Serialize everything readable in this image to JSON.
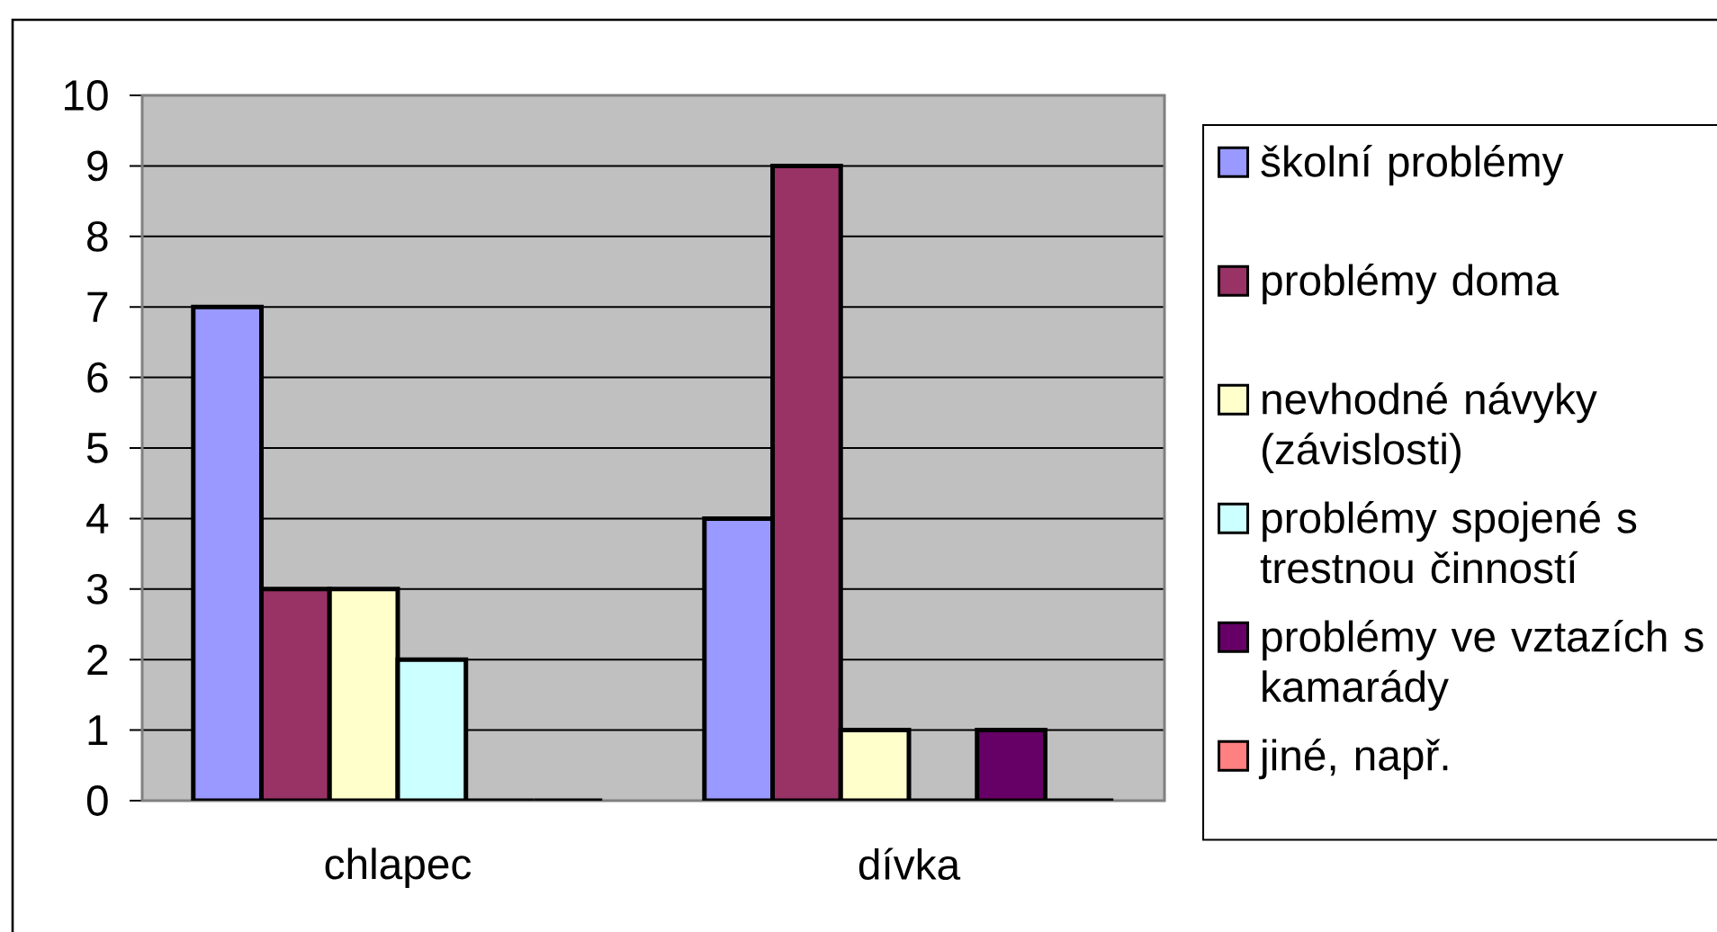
{
  "chart_data": {
    "type": "bar",
    "categories": [
      "chlapec",
      "dívka"
    ],
    "series": [
      {
        "name": "školní problémy",
        "color": "#9999ff",
        "values": [
          7,
          4
        ]
      },
      {
        "name": "problémy doma",
        "color": "#993366",
        "values": [
          3,
          9
        ]
      },
      {
        "name": "nevhodné návyky (závislosti)",
        "color": "#ffffcc",
        "values": [
          3,
          1
        ]
      },
      {
        "name": "problémy spojené s trestnou činností",
        "color": "#ccffff",
        "values": [
          2,
          0
        ]
      },
      {
        "name": "problémy ve vztazích s kamarády",
        "color": "#660066",
        "values": [
          0,
          1
        ]
      },
      {
        "name": "jiné, např.",
        "color": "#ff8080",
        "values": [
          0,
          0
        ]
      }
    ],
    "ylim": [
      0,
      10
    ],
    "yticks": [
      0,
      1,
      2,
      3,
      4,
      5,
      6,
      7,
      8,
      9,
      10
    ],
    "grid": "y",
    "legend": "right"
  }
}
